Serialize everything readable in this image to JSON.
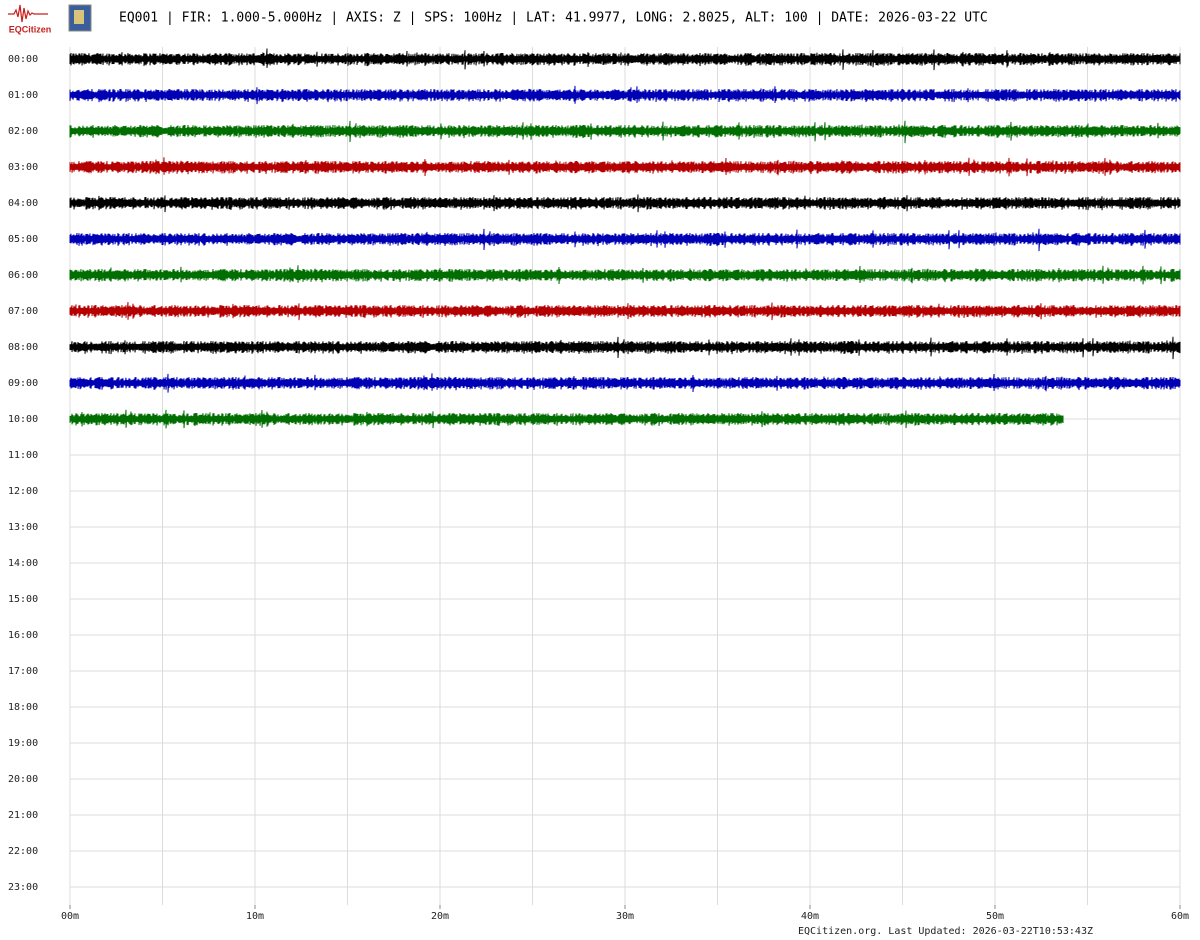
{
  "logo_text": "EQCitizen",
  "chart_data": {
    "type": "helicorder",
    "title": "EQ001 | FIR: 1.000-5.000Hz | AXIS: Z | SPS: 100Hz | LAT: 41.9977, LONG: 2.8025, ALT: 100 | DATE: 2026-03-22 UTC",
    "categories": [
      "00:00",
      "01:00",
      "02:00",
      "03:00",
      "04:00",
      "05:00",
      "06:00",
      "07:00",
      "08:00",
      "09:00",
      "10:00",
      "11:00",
      "12:00",
      "13:00",
      "14:00",
      "15:00",
      "16:00",
      "17:00",
      "18:00",
      "19:00",
      "20:00",
      "21:00",
      "22:00",
      "23:00"
    ],
    "xlim": [
      0,
      60
    ],
    "xticks": [
      {
        "value": 0,
        "label": "00m"
      },
      {
        "value": 10,
        "label": "10m"
      },
      {
        "value": 20,
        "label": "20m"
      },
      {
        "value": 30,
        "label": "30m"
      },
      {
        "value": 40,
        "label": "40m"
      },
      {
        "value": 50,
        "label": "50m"
      },
      {
        "value": 60,
        "label": "60m"
      }
    ],
    "xgrid": [
      0,
      5,
      10,
      15,
      20,
      25,
      30,
      35,
      40,
      45,
      50,
      55,
      60
    ],
    "grid": true,
    "traces": [
      {
        "color": "#000000",
        "x": [
          0,
          60
        ]
      },
      {
        "color": "#0000b4",
        "x": [
          0,
          60
        ]
      },
      {
        "color": "#006e00",
        "x": [
          0,
          60
        ]
      },
      {
        "color": "#b40000",
        "x": [
          0,
          60
        ]
      },
      {
        "color": "#000000",
        "x": [
          0,
          60
        ]
      },
      {
        "color": "#0000b4",
        "x": [
          0,
          60
        ]
      },
      {
        "color": "#006e00",
        "x": [
          0,
          60
        ]
      },
      {
        "color": "#b40000",
        "x": [
          0,
          60
        ]
      },
      {
        "color": "#000000",
        "x": [
          0,
          60
        ]
      },
      {
        "color": "#0000b4",
        "x": [
          0,
          60
        ]
      },
      {
        "color": "#006e00",
        "x": [
          0,
          53.7
        ]
      }
    ],
    "footer": "EQCitizen.org. Last Updated: 2026-03-22T10:53:43Z"
  }
}
